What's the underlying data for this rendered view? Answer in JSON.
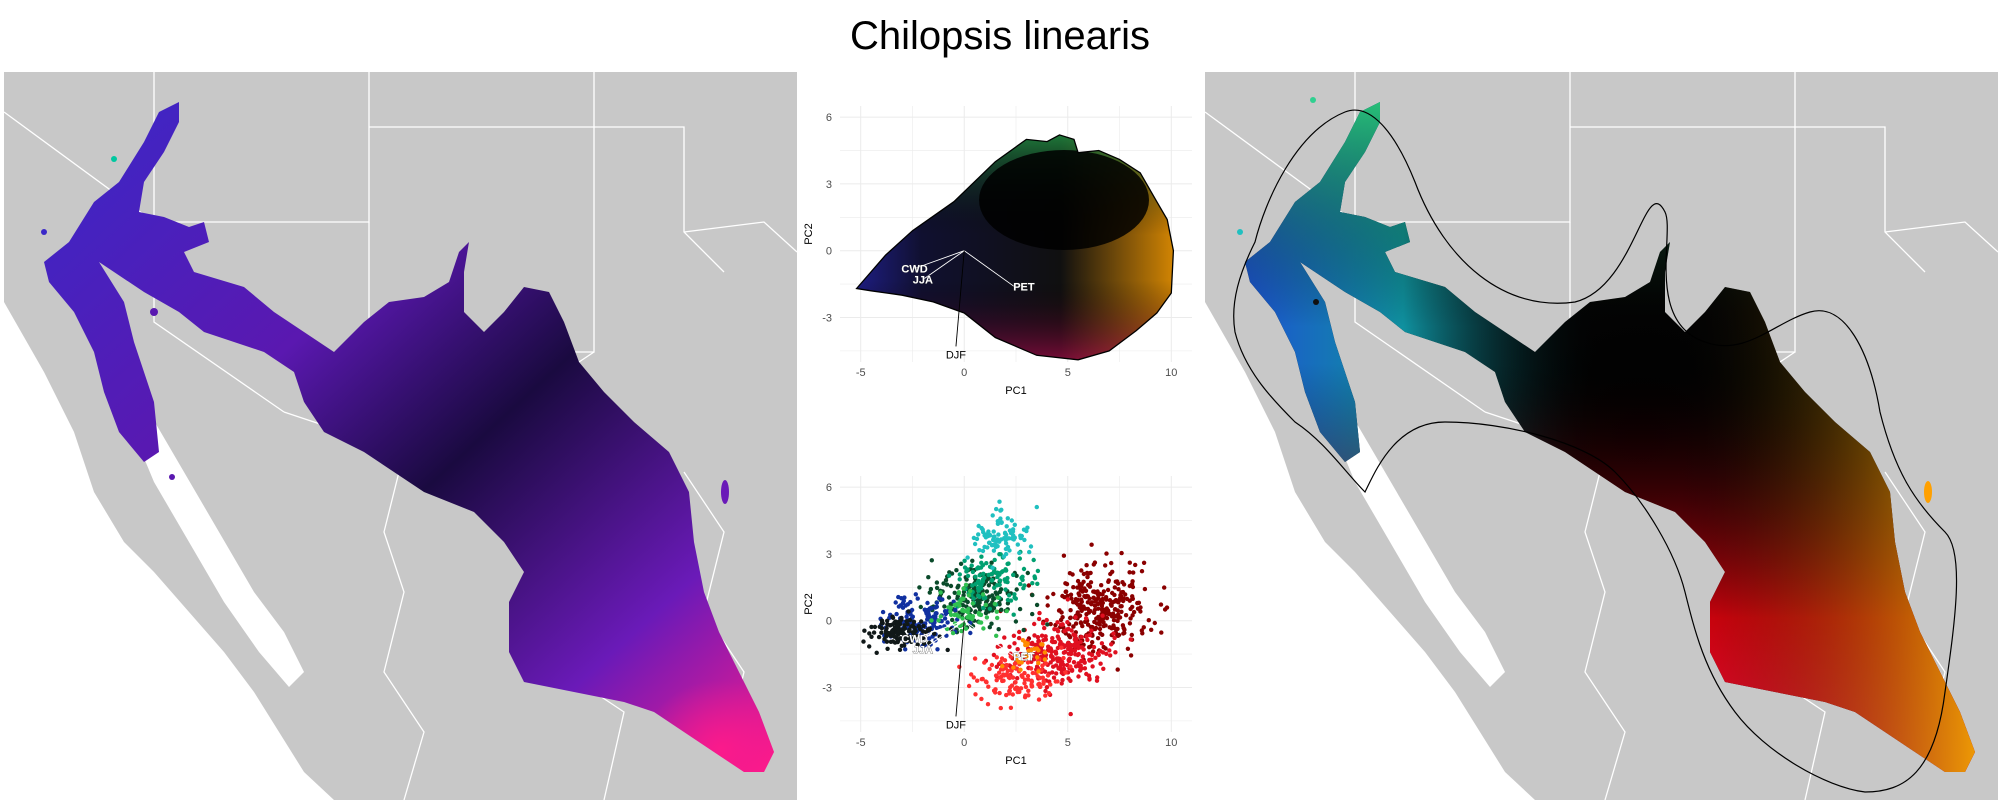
{
  "title": "Chilopsis linearis",
  "colors": {
    "land": "#c8c8c8",
    "border": "#ffffff",
    "sea": "#ffffff",
    "grid": "#ebebeb",
    "outline": "#000000"
  },
  "chart_data": [
    {
      "type": "scatter",
      "panel": "pca-top",
      "xlabel": "PC1",
      "ylabel": "PC2",
      "xlim": [
        -6,
        11
      ],
      "ylim": [
        -5,
        6.5
      ],
      "x_ticks": [
        -5,
        0,
        5,
        10
      ],
      "y_ticks": [
        6,
        3,
        0,
        -3
      ],
      "grid": true,
      "vectors": [
        {
          "label": "CWD",
          "x": -2.4,
          "y": -0.8
        },
        {
          "label": "JJA",
          "x": -2.0,
          "y": -1.3
        },
        {
          "label": "PET",
          "x": 2.4,
          "y": -1.6
        },
        {
          "label": "DJF",
          "x": -0.4,
          "y": -4.3
        }
      ],
      "hull": [
        [
          -5.2,
          -1.7
        ],
        [
          -3.8,
          -0.2
        ],
        [
          -2.5,
          0.9
        ],
        [
          -0.5,
          2.2
        ],
        [
          1.5,
          4.0
        ],
        [
          3.0,
          5.0
        ],
        [
          4.0,
          4.9
        ],
        [
          4.6,
          5.2
        ],
        [
          5.3,
          5.0
        ],
        [
          5.5,
          4.4
        ],
        [
          6.5,
          4.5
        ],
        [
          7.5,
          4.1
        ],
        [
          8.5,
          3.5
        ],
        [
          9.3,
          2.2
        ],
        [
          9.8,
          1.4
        ],
        [
          10.1,
          0.0
        ],
        [
          10.0,
          -1.9
        ],
        [
          9.3,
          -2.8
        ],
        [
          8.3,
          -3.6
        ],
        [
          7.0,
          -4.5
        ],
        [
          5.5,
          -4.9
        ],
        [
          3.5,
          -4.7
        ],
        [
          1.5,
          -3.9
        ],
        [
          0.0,
          -2.8
        ],
        [
          -1.5,
          -2.3
        ],
        [
          -3.0,
          -2.0
        ],
        [
          -4.5,
          -1.8
        ]
      ]
    },
    {
      "type": "scatter",
      "panel": "pca-bottom",
      "xlabel": "PC1",
      "ylabel": "PC2",
      "xlim": [
        -6,
        11
      ],
      "ylim": [
        -5,
        6.5
      ],
      "x_ticks": [
        -5,
        0,
        5,
        10
      ],
      "y_ticks": [
        6,
        3,
        0,
        -3
      ],
      "grid": true,
      "vectors": [
        {
          "label": "CWD",
          "x": -2.4,
          "y": -0.8
        },
        {
          "label": "JJA",
          "x": -2.0,
          "y": -1.3
        },
        {
          "label": "PET",
          "x": 2.4,
          "y": -1.6
        },
        {
          "label": "DJF",
          "x": -0.4,
          "y": -4.3
        }
      ],
      "point_groups": [
        {
          "color": "#8b0000",
          "cx": 6.5,
          "cy": 0.5,
          "sx": 2.0,
          "sy": 1.6,
          "n": 320
        },
        {
          "color": "#e01020",
          "cx": 4.5,
          "cy": -1.5,
          "sx": 2.3,
          "sy": 1.2,
          "n": 260
        },
        {
          "color": "#ff3030",
          "cx": 2.5,
          "cy": -2.6,
          "sx": 1.8,
          "sy": 0.9,
          "n": 120
        },
        {
          "color": "#0a4a2a",
          "cx": 0.5,
          "cy": 1.0,
          "sx": 2.0,
          "sy": 1.2,
          "n": 180
        },
        {
          "color": "#00a070",
          "cx": 1.5,
          "cy": 1.8,
          "sx": 1.5,
          "sy": 1.0,
          "n": 110
        },
        {
          "color": "#20c0c0",
          "cx": 1.8,
          "cy": 3.8,
          "sx": 1.0,
          "sy": 0.8,
          "n": 90
        },
        {
          "color": "#1030a0",
          "cx": -2.0,
          "cy": 0.0,
          "sx": 1.5,
          "sy": 0.9,
          "n": 140
        },
        {
          "color": "#101818",
          "cx": -3.0,
          "cy": -0.5,
          "sx": 1.4,
          "sy": 0.6,
          "n": 120
        },
        {
          "color": "#30c050",
          "cx": 0.0,
          "cy": 0.3,
          "sx": 1.2,
          "sy": 0.8,
          "n": 60
        },
        {
          "color": "#ff8c00",
          "cx": 3.0,
          "cy": -1.5,
          "sx": 0.8,
          "sy": 0.6,
          "n": 25
        }
      ]
    }
  ]
}
